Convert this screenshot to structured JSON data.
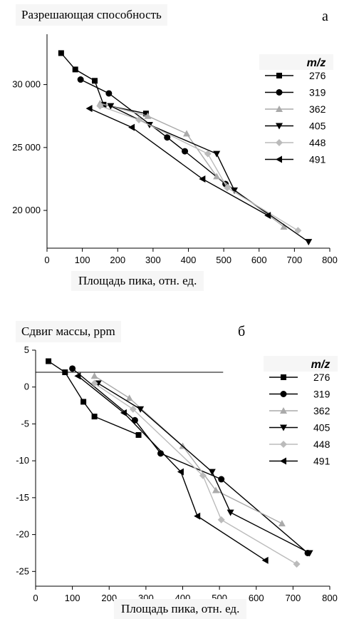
{
  "chart_data": [
    {
      "type": "line",
      "panel_letter": "а",
      "title": "Разрешающая способность",
      "xlabel": "Площадь пика,   отн. ед.",
      "ylabel": "",
      "xlim": [
        0,
        800
      ],
      "ylim": [
        17000,
        34000
      ],
      "xticks": [
        0,
        100,
        200,
        300,
        400,
        500,
        600,
        700,
        800
      ],
      "xtick_labels": [
        "0",
        "100",
        "200",
        "300",
        "400",
        "500",
        "600",
        "700",
        "800"
      ],
      "yticks": [
        20000,
        25000,
        30000
      ],
      "ytick_labels": [
        "20 000",
        "25 000",
        "30 000"
      ],
      "legend_title": "m/z",
      "legend_position": "right",
      "grid": false,
      "series": [
        {
          "name": "276",
          "marker": "square",
          "color": "#000000",
          "points": [
            [
              40,
              32500
            ],
            [
              80,
              31200
            ],
            [
              135,
              30300
            ],
            [
              160,
              28400
            ],
            [
              280,
              27700
            ]
          ]
        },
        {
          "name": "319",
          "marker": "circle",
          "color": "#000000",
          "points": [
            [
              95,
              30400
            ],
            [
              175,
              29300
            ],
            [
              340,
              25800
            ],
            [
              390,
              24700
            ],
            [
              505,
              22100
            ]
          ]
        },
        {
          "name": "362",
          "marker": "triangle-up",
          "color": "#aaaaaa",
          "points": [
            [
              150,
              28500
            ],
            [
              285,
              27500
            ],
            [
              395,
              26100
            ],
            [
              480,
              22700
            ],
            [
              670,
              18700
            ]
          ]
        },
        {
          "name": "405",
          "marker": "triangle-down",
          "color": "#000000",
          "points": [
            [
              180,
              28300
            ],
            [
              290,
              26800
            ],
            [
              480,
              24500
            ],
            [
              530,
              21600
            ],
            [
              740,
              17500
            ]
          ]
        },
        {
          "name": "448",
          "marker": "diamond",
          "color": "#bbbbbb",
          "points": [
            [
              150,
              28300
            ],
            [
              260,
              27200
            ],
            [
              455,
              24500
            ],
            [
              510,
              21800
            ],
            [
              710,
              18400
            ]
          ]
        },
        {
          "name": "491",
          "marker": "triangle-left",
          "color": "#000000",
          "points": [
            [
              120,
              28100
            ],
            [
              240,
              26600
            ],
            [
              440,
              22500
            ],
            [
              625,
              19600
            ]
          ]
        }
      ]
    },
    {
      "type": "line",
      "panel_letter": "б",
      "title": "Сдвиг массы,   ppm",
      "xlabel": "Площадь пика,   отн. ед.",
      "ylabel": "",
      "xlim": [
        0,
        800
      ],
      "ylim": [
        -27,
        5
      ],
      "xticks": [
        0,
        100,
        200,
        300,
        400,
        500,
        600,
        700,
        800
      ],
      "xtick_labels": [
        "0",
        "100",
        "200",
        "300",
        "400",
        "500",
        "600",
        "700",
        "800"
      ],
      "yticks": [
        5,
        0,
        -5,
        -10,
        -15,
        -20,
        -25
      ],
      "ytick_labels": [
        "5",
        "0",
        "-5",
        "-10",
        "-15",
        "-20",
        "-25"
      ],
      "reference_line": {
        "y": 2,
        "x_from": 0,
        "x_to": 510
      },
      "legend_title": "m/z",
      "legend_position": "right",
      "grid": false,
      "series": [
        {
          "name": "276",
          "marker": "square",
          "color": "#000000",
          "points": [
            [
              35,
              3.5
            ],
            [
              80,
              2
            ],
            [
              130,
              -2
            ],
            [
              160,
              -4
            ],
            [
              280,
              -6.5
            ]
          ]
        },
        {
          "name": "319",
          "marker": "circle",
          "color": "#000000",
          "points": [
            [
              100,
              2.5
            ],
            [
              270,
              -4.5
            ],
            [
              340,
              -9
            ],
            [
              505,
              -12.5
            ],
            [
              740,
              -22.5
            ]
          ]
        },
        {
          "name": "362",
          "marker": "triangle-up",
          "color": "#aaaaaa",
          "points": [
            [
              160,
              1.5
            ],
            [
              255,
              -1.5
            ],
            [
              400,
              -8
            ],
            [
              490,
              -14
            ],
            [
              670,
              -18.5
            ]
          ]
        },
        {
          "name": "405",
          "marker": "triangle-down",
          "color": "#000000",
          "points": [
            [
              170,
              0.5
            ],
            [
              285,
              -3
            ],
            [
              480,
              -11.5
            ],
            [
              530,
              -17
            ],
            [
              745,
              -22.5
            ]
          ]
        },
        {
          "name": "448",
          "marker": "diamond",
          "color": "#bbbbbb",
          "points": [
            [
              160,
              0.5
            ],
            [
              265,
              -3
            ],
            [
              455,
              -12
            ],
            [
              505,
              -18
            ],
            [
              710,
              -24
            ]
          ]
        },
        {
          "name": "491",
          "marker": "triangle-left",
          "color": "#000000",
          "points": [
            [
              115,
              1.5
            ],
            [
              240,
              -3.5
            ],
            [
              395,
              -11.5
            ],
            [
              440,
              -17.5
            ],
            [
              625,
              -23.5
            ]
          ]
        }
      ]
    }
  ]
}
